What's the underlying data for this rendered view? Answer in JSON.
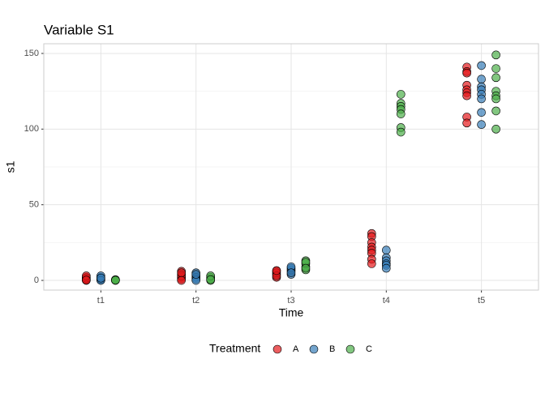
{
  "chart_data": {
    "type": "dot",
    "title": "Variable S1",
    "x_label": "Time",
    "y_label": "s1",
    "categories": [
      "t1",
      "t2",
      "t3",
      "t4",
      "t5"
    ],
    "legend_title": "Treatment",
    "series": [
      {
        "name": "A",
        "color": "#e41a1c",
        "values": [
          [
            0.5,
            1,
            2,
            0,
            1.5,
            3,
            0.2
          ],
          [
            6,
            4,
            2,
            1,
            3,
            5,
            0
          ],
          [
            2,
            4,
            6,
            5,
            3,
            6.5
          ],
          [
            31,
            29,
            25,
            22,
            20,
            18,
            14,
            11
          ],
          [
            141,
            138,
            137,
            129,
            126,
            124,
            122,
            108,
            104
          ]
        ]
      },
      {
        "name": "B",
        "color": "#377eb8",
        "values": [
          [
            0.5,
            1,
            2,
            3,
            0,
            1.5
          ],
          [
            5,
            3,
            2,
            1,
            0,
            4
          ],
          [
            4,
            6,
            7,
            8,
            9,
            5
          ],
          [
            20,
            15,
            13,
            11,
            10,
            8
          ],
          [
            142,
            133,
            128,
            126,
            123,
            120,
            111,
            103
          ]
        ]
      },
      {
        "name": "C",
        "color": "#4daf4a",
        "values": [
          [
            0,
            0.3,
            0.5,
            0.2,
            0.1
          ],
          [
            2,
            1,
            0,
            3,
            0.5
          ],
          [
            7,
            9,
            11,
            13,
            12,
            8
          ],
          [
            123,
            117,
            115,
            113,
            110,
            101,
            98
          ],
          [
            149,
            140,
            134,
            125,
            122,
            120,
            112,
            100
          ]
        ]
      }
    ],
    "ylim": [
      -6.4,
      156.4
    ],
    "yticks": [
      0,
      50,
      100,
      150
    ],
    "grid": true,
    "legend_position": "bottom"
  }
}
